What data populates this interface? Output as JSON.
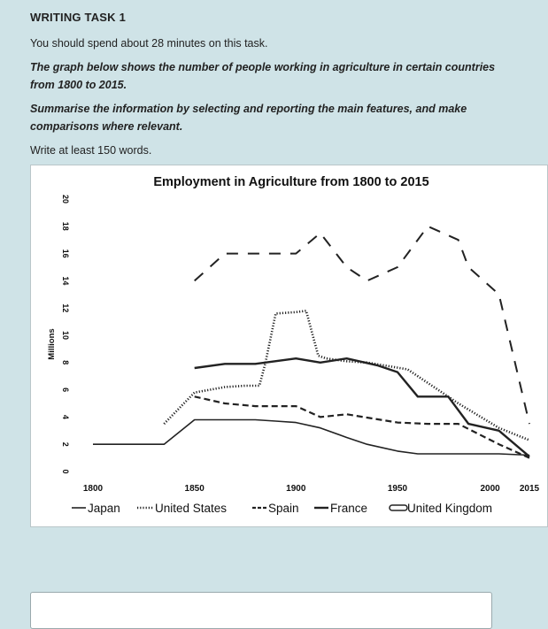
{
  "task": {
    "heading": "WRITING TASK 1",
    "time_note": "You should spend about 28 minutes on this task.",
    "prompt": "The graph below shows the number of people working in agriculture in certain countries from 1800 to 2015.",
    "instruction": "Summarise the information by selecting and reporting the main features, and make comparisons where relevant.",
    "word_note": "Write at least 150 words."
  },
  "chart_data": {
    "type": "line",
    "title": "Employment in Agriculture from 1800 to 2015",
    "ylabel": "Millions",
    "xlabel": "",
    "ylim": [
      0,
      20
    ],
    "xlim": [
      1800,
      2015
    ],
    "y_ticks": [
      0,
      2,
      4,
      6,
      8,
      10,
      12,
      14,
      16,
      18,
      20
    ],
    "x_ticks": [
      1800,
      1850,
      1900,
      1950,
      2000,
      2015
    ],
    "legend_position": "bottom",
    "series": [
      {
        "name": "Japan",
        "style": "solid-thin",
        "x": [
          1800,
          1835,
          1850,
          1870,
          1880,
          1890,
          1900,
          1912,
          1925,
          1935,
          1950,
          1960,
          1975,
          2000,
          2015
        ],
        "y": [
          2,
          2,
          3.8,
          3.8,
          3.8,
          3.7,
          3.6,
          3.2,
          2.5,
          2,
          1.5,
          1.3,
          1.3,
          1.3,
          1.2
        ]
      },
      {
        "name": "United States",
        "style": "dotted",
        "x": [
          1835,
          1850,
          1865,
          1875,
          1882,
          1885,
          1890,
          1900,
          1905,
          1911,
          1915,
          1925,
          1935,
          1955,
          1980,
          2000,
          2015
        ],
        "y": [
          3.5,
          5.8,
          6.2,
          6.3,
          6.3,
          8,
          11.6,
          11.7,
          11.8,
          8.5,
          8.3,
          8.1,
          8,
          7.5,
          5,
          3.2,
          2.3
        ]
      },
      {
        "name": "Spain",
        "style": "dashed",
        "x": [
          1850,
          1865,
          1880,
          1900,
          1912,
          1925,
          1950,
          1965,
          1980,
          2000,
          2015
        ],
        "y": [
          5.5,
          5,
          4.8,
          4.8,
          4,
          4.2,
          3.6,
          3.5,
          3.5,
          2,
          1
        ]
      },
      {
        "name": "France",
        "style": "solid-thick",
        "x": [
          1850,
          1865,
          1880,
          1900,
          1912,
          1925,
          1940,
          1950,
          1960,
          1975,
          1985,
          2000,
          2015
        ],
        "y": [
          7.6,
          7.9,
          7.9,
          8.3,
          8,
          8.3,
          7.8,
          7.3,
          5.5,
          5.5,
          3.5,
          3,
          1.1
        ]
      },
      {
        "name": "United Kingdom",
        "style": "long-dash",
        "x": [
          1850,
          1865,
          1880,
          1900,
          1912,
          1925,
          1935,
          1950,
          1965,
          1980,
          1985,
          2000,
          2015
        ],
        "y": [
          14,
          16,
          16,
          16,
          17.5,
          15,
          14,
          15,
          18,
          17,
          15,
          13,
          3.5
        ]
      }
    ]
  },
  "colors": {
    "page_bg": "#cfe3e7",
    "chart_bg": "#ffffff",
    "series_line": "#222222"
  }
}
